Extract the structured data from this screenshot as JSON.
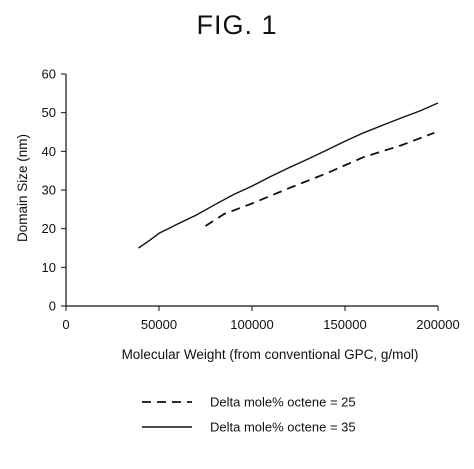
{
  "figure": {
    "title": "FIG. 1"
  },
  "chart_data": {
    "type": "line",
    "title": "FIG. 1",
    "xlabel": "Molecular Weight (from conventional GPC, g/mol)",
    "ylabel": "Domain Size (nm)",
    "xlim": [
      0,
      200000
    ],
    "ylim": [
      0,
      60
    ],
    "x_ticks": [
      "0",
      "50000",
      "100000",
      "150000",
      "200000"
    ],
    "y_ticks": [
      "0",
      "10",
      "20",
      "30",
      "40",
      "50",
      "60"
    ],
    "grid": false,
    "legend_position": "bottom",
    "series": [
      {
        "name": "Delta mole% octene = 25",
        "line_style": "dashed",
        "color": "#111111",
        "x": [
          75000,
          85000,
          100000,
          120000,
          140000,
          160000,
          180000,
          198000
        ],
        "y": [
          20.7,
          23.8,
          26.5,
          30.5,
          34.3,
          38.5,
          41.5,
          44.8
        ]
      },
      {
        "name": "Delta mole% octene = 35",
        "line_style": "solid",
        "color": "#111111",
        "x": [
          39000,
          45000,
          50000,
          55000,
          60000,
          70000,
          80000,
          90000,
          100000,
          110000,
          120000,
          130000,
          140000,
          150000,
          160000,
          170000,
          180000,
          190000,
          200000
        ],
        "y": [
          15.0,
          17.0,
          18.8,
          20.0,
          21.2,
          23.5,
          26.2,
          28.8,
          31.0,
          33.5,
          35.8,
          38.0,
          40.3,
          42.6,
          44.8,
          46.7,
          48.6,
          50.4,
          52.5
        ]
      }
    ]
  }
}
